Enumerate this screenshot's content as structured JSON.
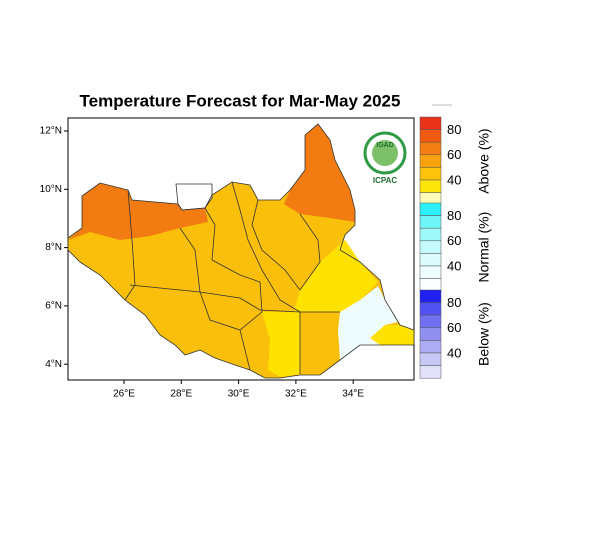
{
  "title": "Temperature Forecast for Mar-May 2025",
  "latitude_ticks": [
    "12°N",
    "10°N",
    "8°N",
    "6°N",
    "4°N"
  ],
  "longitude_ticks": [
    "26°E",
    "28°E",
    "30°E",
    "32°E",
    "34°E"
  ],
  "logo": {
    "name": "IGAD",
    "org": "ICPAC"
  },
  "legend": [
    {
      "name": "Above (%)",
      "labels": [
        "80",
        "60",
        "40"
      ]
    },
    {
      "name": "Normal (%)",
      "labels": [
        "80",
        "60",
        "40"
      ]
    },
    {
      "name": "Below (%)",
      "labels": [
        "80",
        "60",
        "40"
      ]
    }
  ]
}
